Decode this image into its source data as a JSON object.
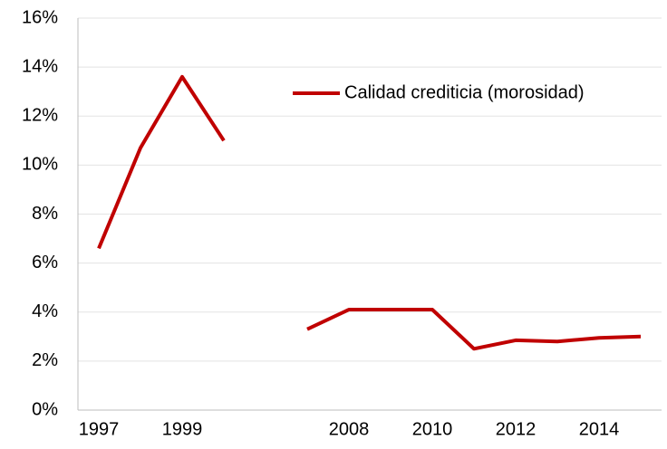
{
  "chart_data": {
    "type": "line",
    "categories": [
      "1997",
      null,
      "1999",
      null,
      null,
      null,
      "2008",
      null,
      "2010",
      null,
      "2012",
      null,
      "2014",
      null
    ],
    "series": [
      {
        "name": "Calidad crediticia (morosidad)",
        "color": "#c00000",
        "values": [
          6.6,
          10.7,
          13.6,
          11.0,
          null,
          3.3,
          4.1,
          4.1,
          4.1,
          2.5,
          2.85,
          2.8,
          2.95,
          3.0
        ]
      }
    ],
    "ylim": [
      0,
      16
    ],
    "yticks": [
      {
        "value": 0,
        "label": "0%"
      },
      {
        "value": 2,
        "label": "2%"
      },
      {
        "value": 4,
        "label": "4%"
      },
      {
        "value": 6,
        "label": "6%"
      },
      {
        "value": 8,
        "label": "8%"
      },
      {
        "value": 10,
        "label": "10%"
      },
      {
        "value": 12,
        "label": "12%"
      },
      {
        "value": 14,
        "label": "14%"
      },
      {
        "value": 16,
        "label": "16%"
      }
    ],
    "grid": true,
    "legend": "upper right"
  }
}
